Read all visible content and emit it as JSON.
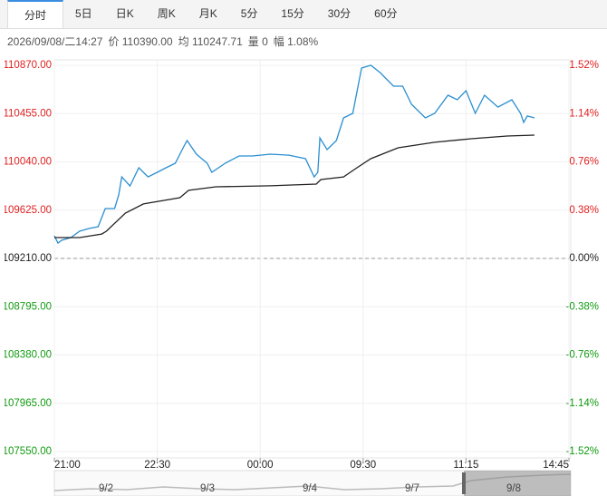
{
  "tabs": [
    "分时",
    "5日",
    "日K",
    "周K",
    "月K",
    "5分",
    "15分",
    "30分",
    "60分"
  ],
  "info": [
    "2026/09/08/二14:27",
    "价 110390.00",
    "均 110247.71",
    "量 0",
    "幅 1.08%"
  ],
  "navigator": {
    "labels": [
      "9/2",
      "9/3",
      "9/4",
      "9/7",
      "9/8"
    ]
  },
  "chart_data": {
    "type": "line",
    "xlim": [
      0,
      100
    ],
    "xticks": [
      {
        "value": 0,
        "label": "21:00"
      },
      {
        "value": 20,
        "label": "22:30"
      },
      {
        "value": 40,
        "label": "00:00"
      },
      {
        "value": 60,
        "label": "09:30"
      },
      {
        "value": 80,
        "label": "11:15"
      },
      {
        "value": 100,
        "label": "14:45"
      }
    ],
    "ylim": [
      107550,
      110870
    ],
    "yticks": [
      {
        "value": 110870,
        "label": "110870.00"
      },
      {
        "value": 110455,
        "label": "110455.00"
      },
      {
        "value": 110040,
        "label": "110040.00"
      },
      {
        "value": 109625,
        "label": "109625.00"
      },
      {
        "value": 109210,
        "label": "109210.00"
      },
      {
        "value": 108795,
        "label": "108795.00"
      },
      {
        "value": 108380,
        "label": "108380.00"
      },
      {
        "value": 107965,
        "label": "107965.00"
      },
      {
        "value": 107550,
        "label": "107550.00"
      }
    ],
    "y2lim": [
      -1.52,
      1.52
    ],
    "y2ticks": [
      {
        "value": 1.52,
        "label": "1.52%"
      },
      {
        "value": 1.14,
        "label": "1.14%"
      },
      {
        "value": 0.76,
        "label": "0.76%"
      },
      {
        "value": 0.38,
        "label": "0.38%"
      },
      {
        "value": 0,
        "label": "0.00%"
      },
      {
        "value": -0.38,
        "label": "-0.38%"
      },
      {
        "value": -0.76,
        "label": "-0.76%"
      },
      {
        "value": -1.14,
        "label": "-1.14%"
      },
      {
        "value": -1.52,
        "label": "-1.52%"
      }
    ],
    "up_color": "#e02020",
    "down_color": "#129a12",
    "flat_color": "#222222",
    "series": [
      {
        "color": "#2a8fd0",
        "x": [
          0,
          0.7,
          1.4,
          3.2,
          4.9,
          6.7,
          8.5,
          9.9,
          11.7,
          12.5,
          13.1,
          14.7,
          16.4,
          18.2,
          20.0,
          21.7,
          23.5,
          25.3,
          25.8,
          27.6,
          29.7,
          30.6,
          33.2,
          35.9,
          38.5,
          42.0,
          45.6,
          48.8,
          50.5,
          51.2,
          51.6,
          53.0,
          54.8,
          56.2,
          58.0,
          59.7,
          61.5,
          63.3,
          65.9,
          67.7,
          69.4,
          72.1,
          73.9,
          76.5,
          78.3,
          80.0,
          81.8,
          83.6,
          86.2,
          88.9,
          90.6,
          91.2,
          91.9,
          93.3
        ],
        "values": [
          109405,
          109342,
          109366,
          109389,
          109444,
          109467,
          109483,
          109639,
          109639,
          109755,
          109911,
          109833,
          109989,
          109911,
          109950,
          109989,
          110028,
          110184,
          110223,
          110106,
          110028,
          109950,
          110028,
          110091,
          110091,
          110106,
          110098,
          110067,
          109911,
          109950,
          110246,
          110145,
          110223,
          110418,
          110457,
          110847,
          110870,
          110808,
          110691,
          110691,
          110535,
          110418,
          110457,
          110613,
          110574,
          110652,
          110457,
          110613,
          110511,
          110574,
          110457,
          110379,
          110434,
          110418
        ]
      },
      {
        "color": "#222222",
        "x": [
          0,
          4.9,
          9.2,
          10.1,
          13.8,
          17.3,
          24.4,
          26.1,
          31.4,
          42.0,
          50.9,
          51.8,
          56.2,
          58.8,
          61.5,
          66.8,
          73.9,
          81.0,
          88.0,
          93.3
        ],
        "values": [
          109389,
          109389,
          109420,
          109444,
          109600,
          109678,
          109732,
          109795,
          109826,
          109834,
          109849,
          109888,
          109911,
          109989,
          110067,
          110161,
          110208,
          110239,
          110262,
          110270
        ]
      }
    ]
  }
}
